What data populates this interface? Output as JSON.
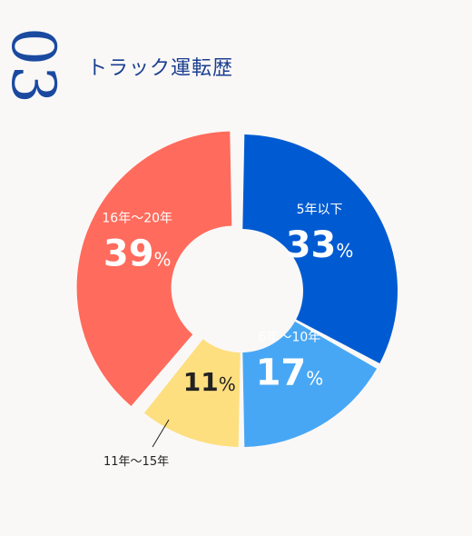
{
  "section_number": "03",
  "title": "トラック運転歴",
  "colors": {
    "number": "#1a4aa0",
    "title": "#1a3f8f"
  },
  "chart_data": {
    "type": "pie",
    "style": "donut",
    "categories": [
      "5年以下",
      "6年〜10年",
      "11年〜15年",
      "16年〜20年"
    ],
    "values": [
      33,
      17,
      11,
      39
    ],
    "value_labels": [
      "33",
      "17",
      "11",
      "39"
    ],
    "unit": "%",
    "colors": [
      "#005bd2",
      "#48a7f4",
      "#fddf7f",
      "#ff6b5c"
    ],
    "label_colors": [
      "#ffffff",
      "#ffffff",
      "#222222",
      "#ffffff"
    ],
    "offset_segment": "16年〜20年",
    "external_label_segment": "11年〜15年"
  }
}
